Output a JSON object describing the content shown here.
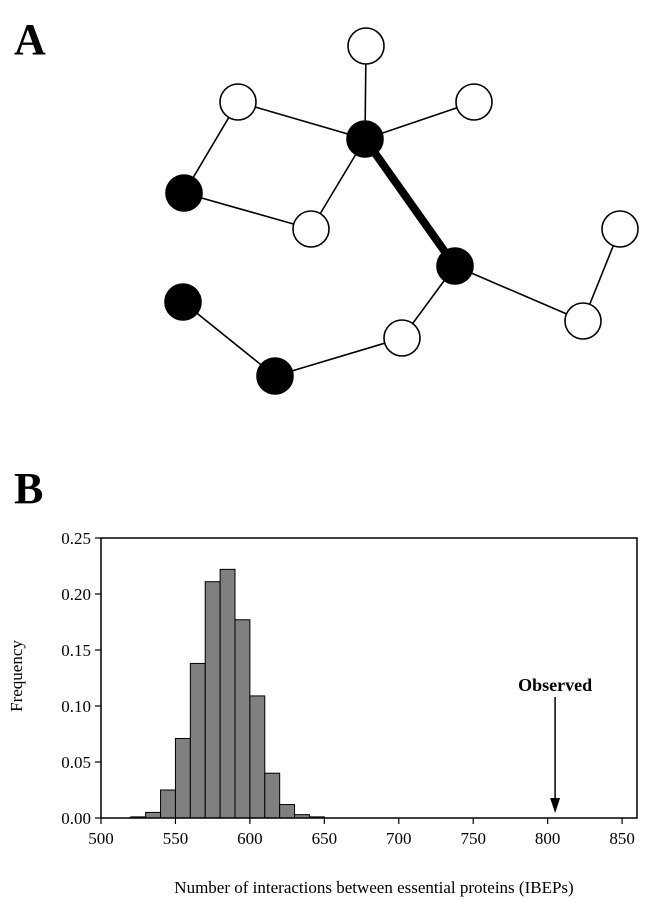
{
  "panels": {
    "a_label": "A",
    "b_label": "B"
  },
  "network": {
    "nodes": [
      {
        "id": "n1",
        "essential": false
      },
      {
        "id": "n2",
        "essential": false
      },
      {
        "id": "n3",
        "essential": false
      },
      {
        "id": "n4",
        "essential": true
      },
      {
        "id": "n5",
        "essential": true
      },
      {
        "id": "n6",
        "essential": false
      },
      {
        "id": "n7",
        "essential": false
      },
      {
        "id": "n8",
        "essential": true
      },
      {
        "id": "n9",
        "essential": false
      },
      {
        "id": "n10",
        "essential": true
      },
      {
        "id": "n11",
        "essential": false
      },
      {
        "id": "n12",
        "essential": true
      }
    ],
    "edges": [
      {
        "from": "n1",
        "to": "n4",
        "highlight": false
      },
      {
        "from": "n2",
        "to": "n4",
        "highlight": false
      },
      {
        "from": "n3",
        "to": "n4",
        "highlight": false
      },
      {
        "from": "n2",
        "to": "n5",
        "highlight": false
      },
      {
        "from": "n5",
        "to": "n6",
        "highlight": false
      },
      {
        "from": "n6",
        "to": "n4",
        "highlight": false
      },
      {
        "from": "n4",
        "to": "n8",
        "highlight": true
      },
      {
        "from": "n8",
        "to": "n9",
        "highlight": false
      },
      {
        "from": "n7",
        "to": "n9",
        "highlight": false
      },
      {
        "from": "n8",
        "to": "n11",
        "highlight": false
      },
      {
        "from": "n11",
        "to": "n12",
        "highlight": false
      },
      {
        "from": "n10",
        "to": "n12",
        "highlight": false
      }
    ]
  },
  "chart_data": {
    "type": "bar",
    "title": "",
    "xlabel": "Number of interactions between essential proteins (IBEPs)",
    "ylabel": "Frequency",
    "xlim": [
      500,
      860
    ],
    "ylim": [
      0,
      0.25
    ],
    "xticks": [
      500,
      550,
      600,
      650,
      700,
      750,
      800,
      850
    ],
    "yticks": [
      "0.00",
      "0.05",
      "0.10",
      "0.15",
      "0.20",
      "0.25"
    ],
    "bin_width": 10,
    "bins": [
      525,
      535,
      545,
      555,
      565,
      575,
      585,
      595,
      605,
      615,
      625,
      635,
      645
    ],
    "values": [
      0.001,
      0.005,
      0.025,
      0.071,
      0.138,
      0.211,
      0.222,
      0.177,
      0.109,
      0.04,
      0.012,
      0.003,
      0.001
    ],
    "bar_color": "#808080",
    "annotation": {
      "text": "Observed",
      "x": 805
    },
    "grid": false
  }
}
